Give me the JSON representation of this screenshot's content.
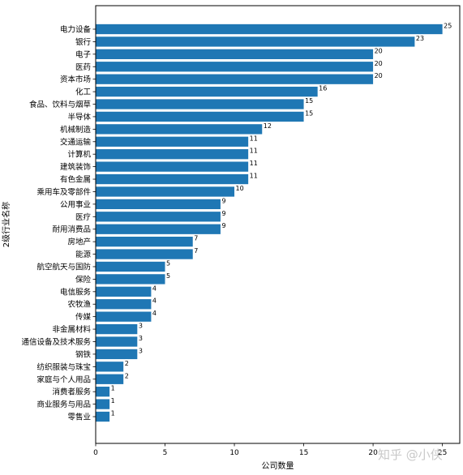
{
  "chart_data": {
    "type": "bar",
    "orientation": "horizontal",
    "title": "",
    "xlabel": "公司数量",
    "ylabel": "2级行业名称",
    "xlim": [
      0,
      26.25
    ],
    "xticks": [
      0,
      5,
      10,
      15,
      20,
      25
    ],
    "grid": false,
    "bar_color": "#1f77b4",
    "categories": [
      "电力设备",
      "银行",
      "电子",
      "医药",
      "资本市场",
      "化工",
      "食品、饮料与烟草",
      "半导体",
      "机械制造",
      "交通运输",
      "计算机",
      "建筑装饰",
      "有色金属",
      "乘用车及零部件",
      "公用事业",
      "医疗",
      "耐用消费品",
      "房地产",
      "能源",
      "航空航天与国防",
      "保险",
      "电信服务",
      "农牧渔",
      "传媒",
      "非金属材料",
      "通信设备及技术服务",
      "钢铁",
      "纺织服装与珠宝",
      "家庭与个人用品",
      "消费者服务",
      "商业服务与用品",
      "零售业"
    ],
    "values": [
      25,
      23,
      20,
      20,
      20,
      16,
      15,
      15,
      12,
      11,
      11,
      11,
      11,
      10,
      9,
      9,
      9,
      7,
      7,
      5,
      5,
      4,
      4,
      4,
      3,
      3,
      3,
      2,
      2,
      1,
      1,
      1
    ]
  },
  "watermark": "知乎 @小侠"
}
